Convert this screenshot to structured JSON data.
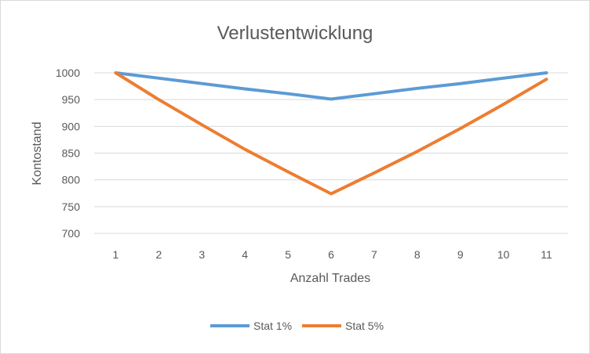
{
  "chart_data": {
    "type": "line",
    "title": "Verlustentwicklung",
    "xlabel": "Anzahl Trades",
    "ylabel": "Kontostand",
    "categories": [
      "1",
      "2",
      "3",
      "4",
      "5",
      "6",
      "7",
      "8",
      "9",
      "10",
      "11"
    ],
    "ylim": [
      700,
      1000
    ],
    "yticks": [
      700,
      750,
      800,
      850,
      900,
      950,
      1000
    ],
    "grid": true,
    "legend_position": "bottom",
    "series": [
      {
        "name": "Stat 1%",
        "color": "#5b9bd5",
        "values": [
          1000,
          990,
          980,
          970,
          961,
          951,
          961,
          971,
          980,
          990,
          1000
        ]
      },
      {
        "name": "Stat 5%",
        "color": "#ed7d31",
        "values": [
          1000,
          950,
          903,
          857,
          815,
          774,
          813,
          853,
          896,
          941,
          988
        ]
      }
    ]
  }
}
